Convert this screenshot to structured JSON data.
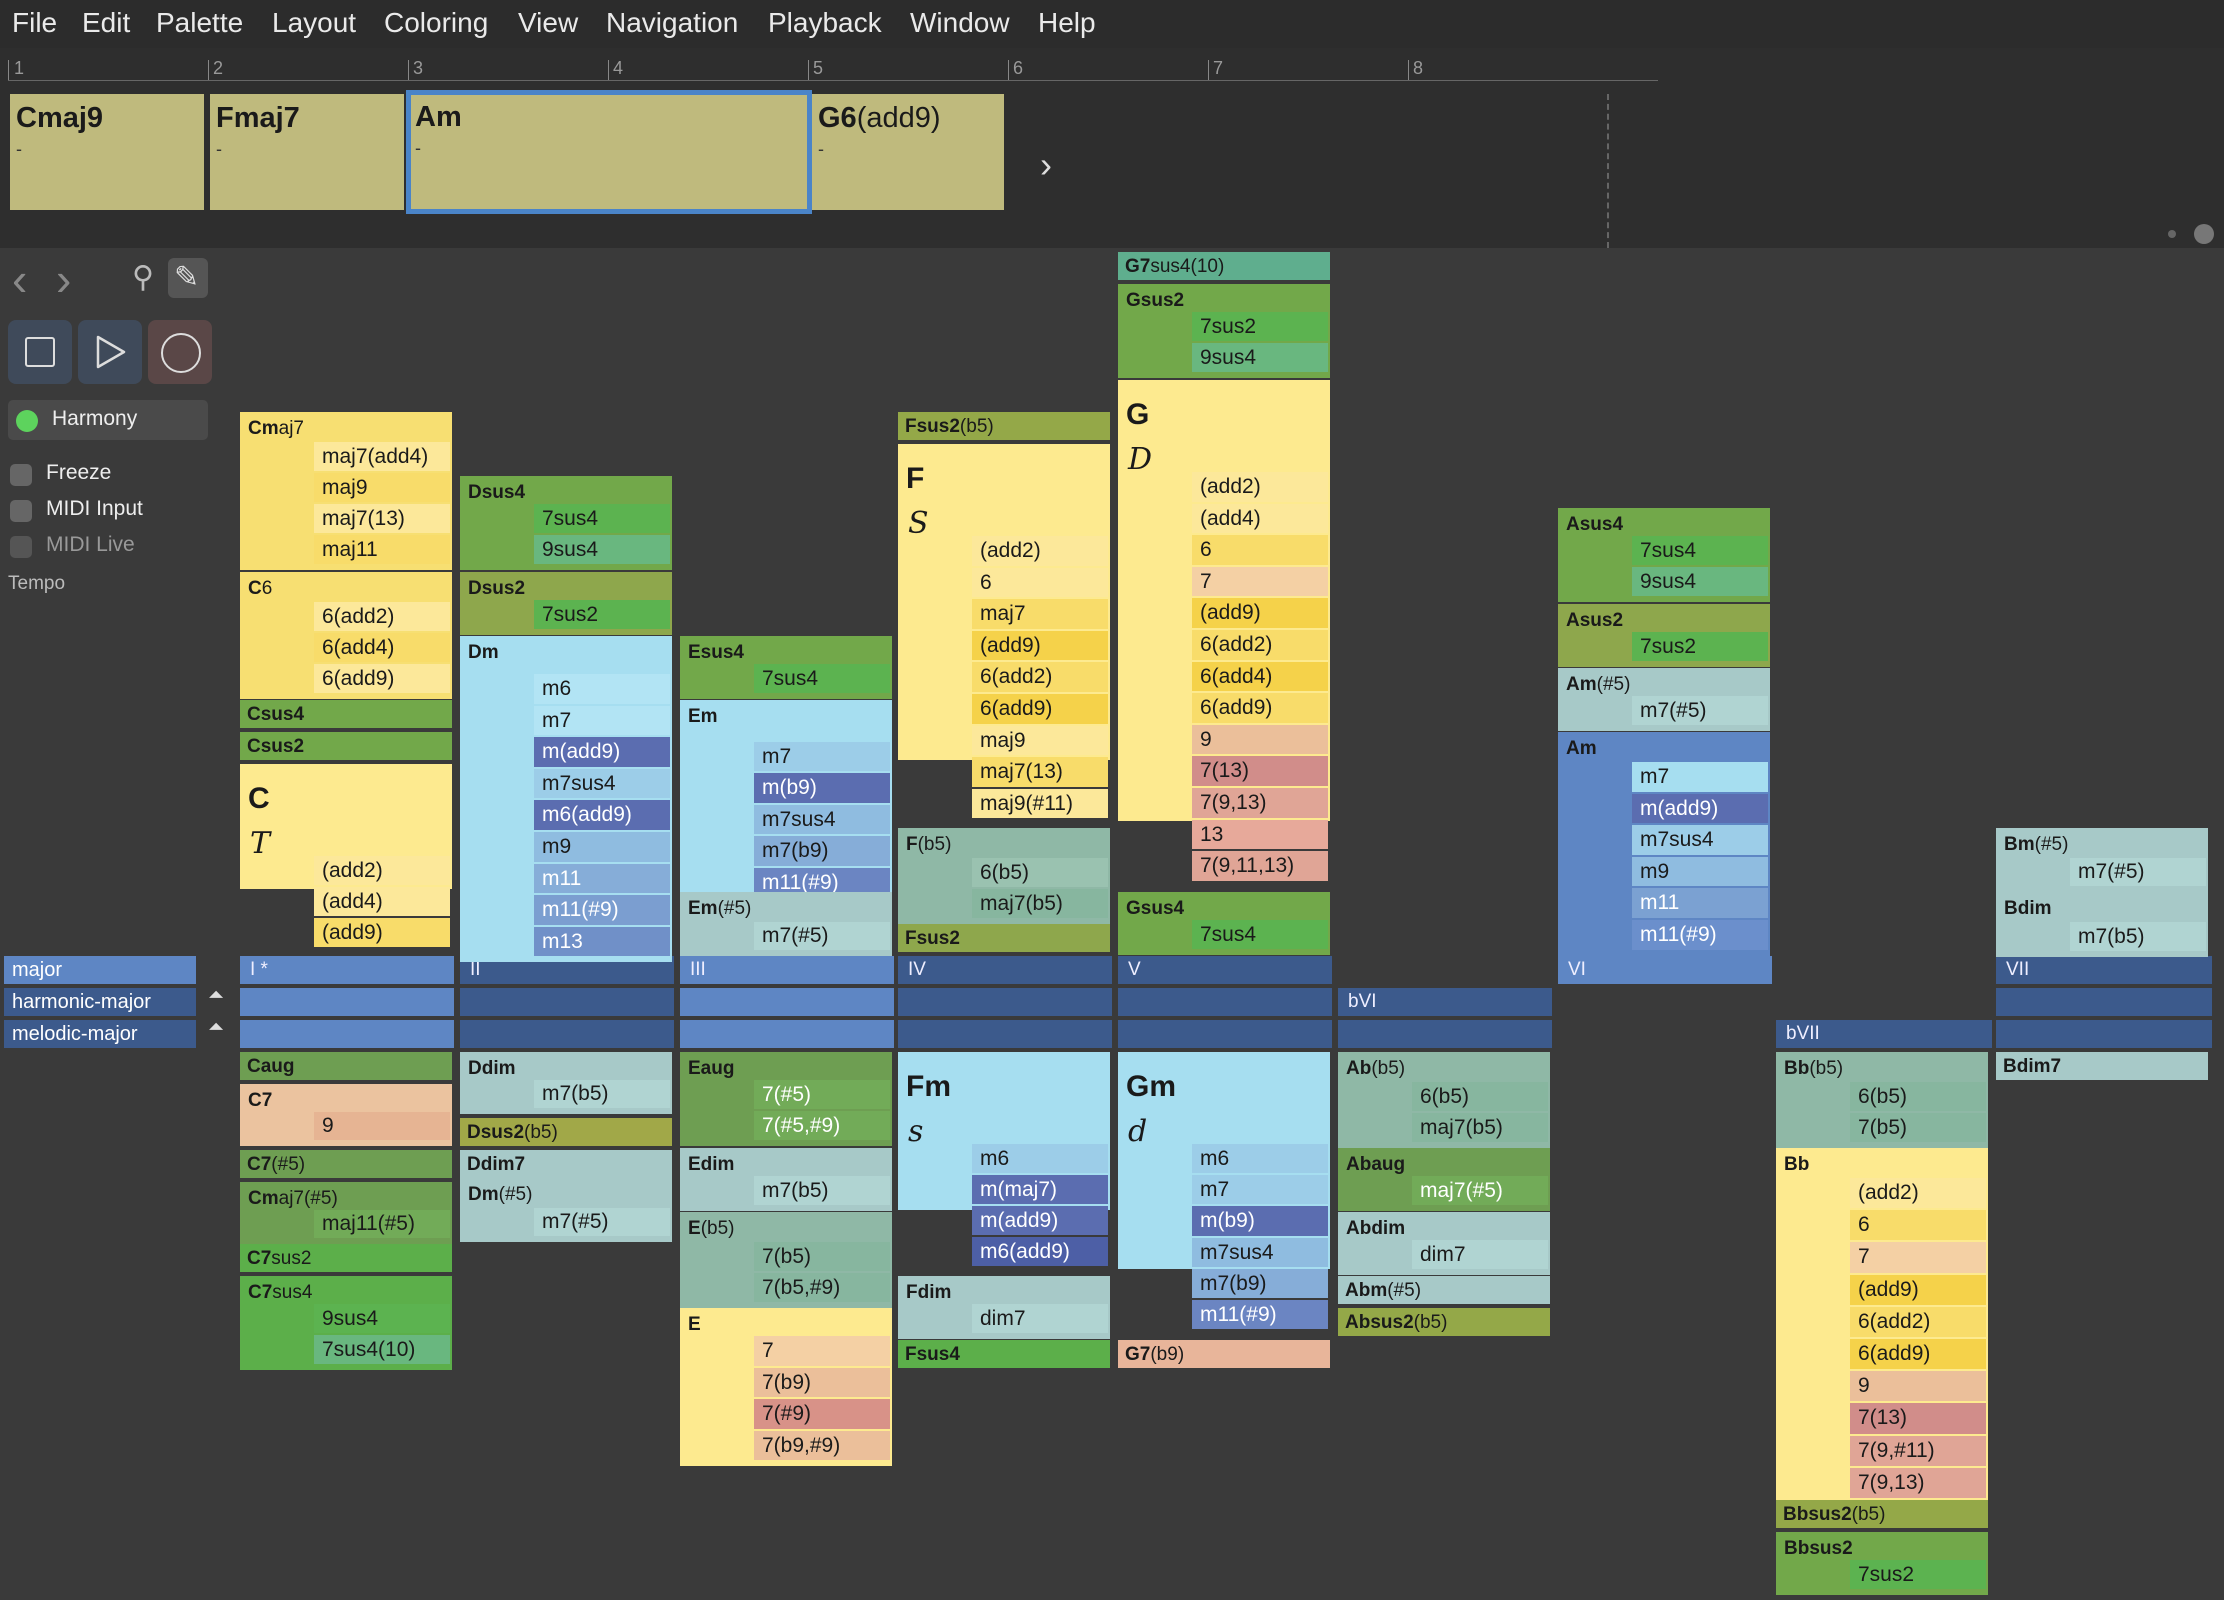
{
  "menu": [
    "File",
    "Edit",
    "Palette",
    "Layout",
    "Coloring",
    "View",
    "Navigation",
    "Playback",
    "Window",
    "Help"
  ],
  "ruler": [
    "1",
    "2",
    "3",
    "4",
    "5",
    "6",
    "7",
    "8"
  ],
  "progression": [
    {
      "name": "Cmaj9",
      "suffix": "",
      "sub": "-"
    },
    {
      "name": "Fmaj7",
      "suffix": "",
      "sub": "-"
    },
    {
      "name": "Am",
      "suffix": "",
      "sub": "-"
    },
    {
      "name": "G6",
      "suffix": "(add9)",
      "sub": "-"
    }
  ],
  "panel": {
    "harmony": "Harmony",
    "freeze": "Freeze",
    "midi_input": "MIDI Input",
    "midi_live": "MIDI Live",
    "tempo": "Tempo"
  },
  "modes": [
    "major",
    "harmonic-major",
    "melodic-major"
  ],
  "degrees": {
    "I": "I *",
    "II": "II",
    "III": "III",
    "IV": "IV",
    "V": "V",
    "VI": "VI",
    "VII": "VII",
    "bVI": "bVI",
    "bVII": "bVII"
  },
  "colors": {
    "yellow": "#fbe98a",
    "green": "#6aa84f",
    "blue_light": "#9fdcef",
    "blue": "#5c86c4",
    "navy": "#5a6fb0",
    "sage": "#8fb8a6",
    "olive": "#94a848",
    "salmon": "#e8b59a",
    "rose": "#d18d8a"
  },
  "chords": {
    "c1": {
      "cmaj7": "Cmaj7",
      "cmaj7_ext": [
        "maj7(add4)",
        "maj9",
        "maj7(13)",
        "maj11"
      ],
      "c6": "C6",
      "c6_ext": [
        "6(add2)",
        "6(add4)",
        "6(add9)"
      ],
      "csus4": "Csus4",
      "csus2": "Csus2",
      "c": "C",
      "c_fn": "T",
      "c_ext": [
        "(add2)",
        "(add4)",
        "(add9)"
      ],
      "caug": "Caug",
      "c7": "C7",
      "c7_ext": [
        "9"
      ],
      "c7s5": "C7(#5)",
      "cmaj7s5": "Cmaj7(#5)",
      "cmaj7s5_ext": [
        "maj11(#5)"
      ],
      "c7sus2": "C7sus2",
      "c7sus4": "C7sus4",
      "c7sus4_ext": [
        "9sus4",
        "7sus4(10)"
      ]
    },
    "c2": {
      "dsus4": "Dsus4",
      "dsus4_ext": [
        "7sus4",
        "9sus4"
      ],
      "dsus2": "Dsus2",
      "dsus2_ext": [
        "7sus2"
      ],
      "dm": "Dm",
      "dm_ext": [
        "m6",
        "m7",
        "m(add9)",
        "m7sus4",
        "m6(add9)",
        "m9",
        "m11",
        "m11(#9)",
        "m13"
      ],
      "ddim": "Ddim",
      "ddim_ext": [
        "m7(b5)"
      ],
      "dsus2b5": "Dsus2(b5)",
      "ddim7": "Ddim7",
      "dms5": "Dm(#5)",
      "dms5_ext": [
        "m7(#5)"
      ]
    },
    "c3": {
      "esus4": "Esus4",
      "esus4_ext": [
        "7sus4"
      ],
      "em": "Em",
      "em_ext": [
        "m7",
        "m(b9)",
        "m7sus4",
        "m7(b9)",
        "m11(#9)"
      ],
      "ems5": "Em(#5)",
      "ems5_ext": [
        "m7(#5)"
      ],
      "eaug": "Eaug",
      "eaug_ext": [
        "7(#5)",
        "7(#5,#9)"
      ],
      "edim": "Edim",
      "edim_ext": [
        "m7(b5)"
      ],
      "eb5": "E(b5)",
      "eb5_ext": [
        "7(b5)",
        "7(b5,#9)"
      ],
      "e": "E",
      "e_ext": [
        "7",
        "7(b9)",
        "7(#9)",
        "7(b9,#9)"
      ]
    },
    "c4": {
      "fsus2b5": "Fsus2(b5)",
      "f": "F",
      "f_fn": "S",
      "f_ext": [
        "(add2)",
        "6",
        "maj7",
        "(add9)",
        "6(add2)",
        "6(add9)",
        "maj9",
        "maj7(13)",
        "maj9(#11)"
      ],
      "fb5": "F(b5)",
      "fb5_ext": [
        "6(b5)",
        "maj7(b5)"
      ],
      "fsus2": "Fsus2",
      "fm": "Fm",
      "fm_fn": "s",
      "fm_ext": [
        "m6",
        "m(maj7)",
        "m(add9)",
        "m6(add9)"
      ],
      "fdim": "Fdim",
      "fdim_ext": [
        "dim7"
      ],
      "fsus4": "Fsus4"
    },
    "c5": {
      "g7sus4_10": "G7sus4(10)",
      "gsus2": "Gsus2",
      "gsus2_ext": [
        "7sus2",
        "9sus4"
      ],
      "g": "G",
      "g_fn": "D",
      "g_ext": [
        "(add2)",
        "(add4)",
        "6",
        "7",
        "(add9)",
        "6(add2)",
        "6(add4)",
        "6(add9)",
        "9",
        "7(13)",
        "7(9,13)",
        "13",
        "7(9,11,13)"
      ],
      "gsus4": "Gsus4",
      "gsus4_ext": [
        "7sus4"
      ],
      "gm": "Gm",
      "gm_fn": "d",
      "gm_ext": [
        "m6",
        "m7",
        "m(b9)",
        "m7sus4",
        "m7(b9)",
        "m11(#9)"
      ],
      "g7b9": "G7(b9)"
    },
    "c6": {
      "abb5": "Ab(b5)",
      "abb5_ext": [
        "6(b5)",
        "maj7(b5)"
      ],
      "abaug": "Abaug",
      "abaug_ext": [
        "maj7(#5)"
      ],
      "abdim": "Abdim",
      "abdim_ext": [
        "dim7"
      ],
      "abms5": "Abm(#5)",
      "absus2b5": "Absus2(b5)"
    },
    "c7": {
      "asus4": "Asus4",
      "asus4_ext": [
        "7sus4",
        "9sus4"
      ],
      "asus2": "Asus2",
      "asus2_ext": [
        "7sus2"
      ],
      "ams5": "Am(#5)",
      "ams5_ext": [
        "m7(#5)"
      ],
      "am": "Am",
      "am_ext": [
        "m7",
        "m(add9)",
        "m7sus4",
        "m9",
        "m11",
        "m11(#9)"
      ]
    },
    "c8": {
      "bbb5": "Bb(b5)",
      "bbb5_ext": [
        "6(b5)",
        "7(b5)"
      ],
      "bb": "Bb",
      "bb_ext": [
        "(add2)",
        "6",
        "7",
        "(add9)",
        "6(add2)",
        "6(add9)",
        "9",
        "7(13)",
        "7(9,#11)",
        "7(9,13)"
      ],
      "bbsus2b5": "Bbsus2(b5)",
      "bbsus2": "Bbsus2",
      "bbsus2_ext": [
        "7sus2"
      ]
    },
    "c9": {
      "bms5": "Bm(#5)",
      "bms5_ext": [
        "m7(#5)"
      ],
      "bdim": "Bdim",
      "bdim_ext": [
        "m7(b5)"
      ],
      "bdim7": "Bdim7"
    }
  }
}
